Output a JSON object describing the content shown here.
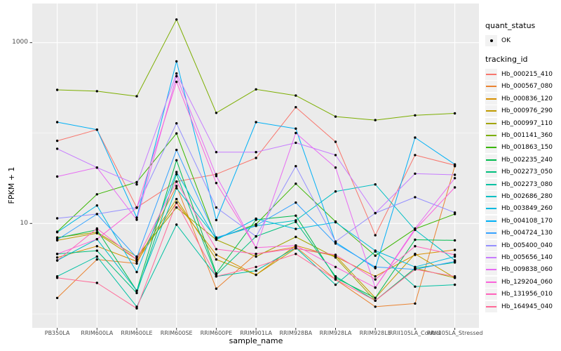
{
  "chart_data": {
    "type": "line",
    "title": "",
    "xlabel": "sample_name",
    "ylabel": "FPKM + 1",
    "y_scale": "log10",
    "ylim": [
      0.7,
      2650
    ],
    "grid": "on",
    "legend_position": "right",
    "y_major_ticks": [
      {
        "label": "1000",
        "value": 1000
      },
      {
        "label": "10",
        "value": 10
      }
    ],
    "y_minor_ticks": [
      100,
      1
    ],
    "categories": [
      "PB350LA",
      "RRIM600LA",
      "RRIM600LE",
      "RRIM600SE",
      "RRIM600PE",
      "RRIM901LA",
      "RRIM928BA",
      "RRIM928LA",
      "RRIM928LE",
      "RRII105LA_Control",
      "RRII105LA_Stressed"
    ],
    "legend": {
      "quant_status_title": "quant_status",
      "quant_status_items": [
        {
          "label": "OK",
          "marker": "point"
        }
      ],
      "tracking_title": "tracking_id"
    },
    "series": [
      {
        "name": "Hb_000215_410",
        "color": "#F8766D",
        "values": [
          82,
          109,
          15,
          29,
          35,
          53,
          193,
          80,
          7.4,
          57,
          44
        ]
      },
      {
        "name": "Hb_000567_080",
        "color": "#EA8331",
        "values": [
          1.5,
          4.0,
          3.6,
          26,
          1.9,
          4.6,
          5.5,
          2.4,
          1.2,
          1.3,
          43
        ]
      },
      {
        "name": "Hb_000836_120",
        "color": "#D89000",
        "values": [
          4.2,
          5.6,
          3.8,
          17,
          4.5,
          2.7,
          5.7,
          4.3,
          2.6,
          4.5,
          5.1
        ]
      },
      {
        "name": "Hb_000976_290",
        "color": "#C09B00",
        "values": [
          6.5,
          7.8,
          4.0,
          18.6,
          4.0,
          2.7,
          5.3,
          4.4,
          1.5,
          4.6,
          2.5
        ]
      },
      {
        "name": "Hb_000997_110",
        "color": "#A3A500",
        "values": [
          7.0,
          8.0,
          4.3,
          15,
          6.6,
          4.3,
          7.1,
          4.2,
          1.4,
          3.2,
          2.5
        ]
      },
      {
        "name": "Hb_001141_360",
        "color": "#7CAE00",
        "values": [
          300,
          290,
          255,
          1800,
          167,
          304,
          260,
          152,
          139,
          157,
          165
        ]
      },
      {
        "name": "Hb_001863_150",
        "color": "#39B600",
        "values": [
          8.1,
          21,
          28.6,
          99,
          6.8,
          9.8,
          27.5,
          10.5,
          4.4,
          8.7,
          12.7
        ]
      },
      {
        "name": "Hb_002235_240",
        "color": "#00BB4E",
        "values": [
          6.9,
          8.5,
          1.8,
          50,
          2.8,
          11,
          12.2,
          2.5,
          1.5,
          6.6,
          6.5
        ]
      },
      {
        "name": "Hb_002273_050",
        "color": "#00BF7D",
        "values": [
          4.6,
          5.0,
          1.7,
          35,
          2.7,
          7.2,
          10.4,
          2.6,
          1.4,
          3.2,
          3.7
        ]
      },
      {
        "name": "Hb_002273_080",
        "color": "#00C1A3",
        "values": [
          2.6,
          4.3,
          1.2,
          9.7,
          2.6,
          3.0,
          5.4,
          2.1,
          4.9,
          2.0,
          2.1
        ]
      },
      {
        "name": "Hb_002686_280",
        "color": "#00BFC4",
        "values": [
          3.9,
          6.7,
          1.8,
          24.5,
          6.9,
          9.4,
          10.8,
          22.6,
          27,
          8.5,
          3.9
        ]
      },
      {
        "name": "Hb_003849_260",
        "color": "#00BAE0",
        "values": [
          8.0,
          15.8,
          2.9,
          37,
          6.6,
          11.3,
          8.7,
          10.3,
          5.0,
          3.3,
          4.3
        ]
      },
      {
        "name": "Hb_004108_170",
        "color": "#00B0F6",
        "values": [
          132,
          109,
          11.6,
          620,
          10.9,
          132,
          112,
          6.2,
          3.2,
          89,
          45
        ]
      },
      {
        "name": "Hb_004724_130",
        "color": "#35A2FF",
        "values": [
          6.6,
          12.7,
          4.2,
          65,
          7.0,
          9.5,
          17,
          6.0,
          3.3,
          3.1,
          3.8
        ]
      },
      {
        "name": "Hb_005400_040",
        "color": "#9590FF",
        "values": [
          11.4,
          12.7,
          15,
          128,
          15,
          7.2,
          43,
          6.3,
          13,
          19.5,
          13.2
        ]
      },
      {
        "name": "Hb_005656_140",
        "color": "#C77CFF",
        "values": [
          67,
          41.5,
          27,
          455,
          61.5,
          61.5,
          78,
          57,
          13,
          35.5,
          34.5
        ]
      },
      {
        "name": "Hb_009838_060",
        "color": "#E76BF3",
        "values": [
          33,
          41.5,
          11,
          425,
          33.5,
          5.4,
          100,
          41.5,
          1.95,
          8.8,
          31.7
        ]
      },
      {
        "name": "Hb_129204_060",
        "color": "#FA62DB",
        "values": [
          4.6,
          6.7,
          14.9,
          368,
          28,
          5.4,
          5.7,
          3.3,
          1.95,
          8.5,
          25
        ]
      },
      {
        "name": "Hb_131956_010",
        "color": "#FF62BC",
        "values": [
          3.9,
          8.8,
          4.0,
          29,
          5.2,
          4.6,
          5.3,
          4.5,
          2.4,
          5.6,
          4.5
        ]
      },
      {
        "name": "Hb_164945_040",
        "color": "#FF6A98",
        "values": [
          2.5,
          2.2,
          1.15,
          17,
          2.6,
          3.3,
          4.6,
          2.4,
          1.4,
          3.1,
          2.6
        ]
      }
    ],
    "style": {
      "panel_bg": "#EBEBEB",
      "grid_color": "#FFFFFF",
      "tick_color": "#333333",
      "tick_label_color": "#4D4D4D",
      "point_color": "#000000",
      "legend_key_bg": "#F2F2F2"
    }
  }
}
